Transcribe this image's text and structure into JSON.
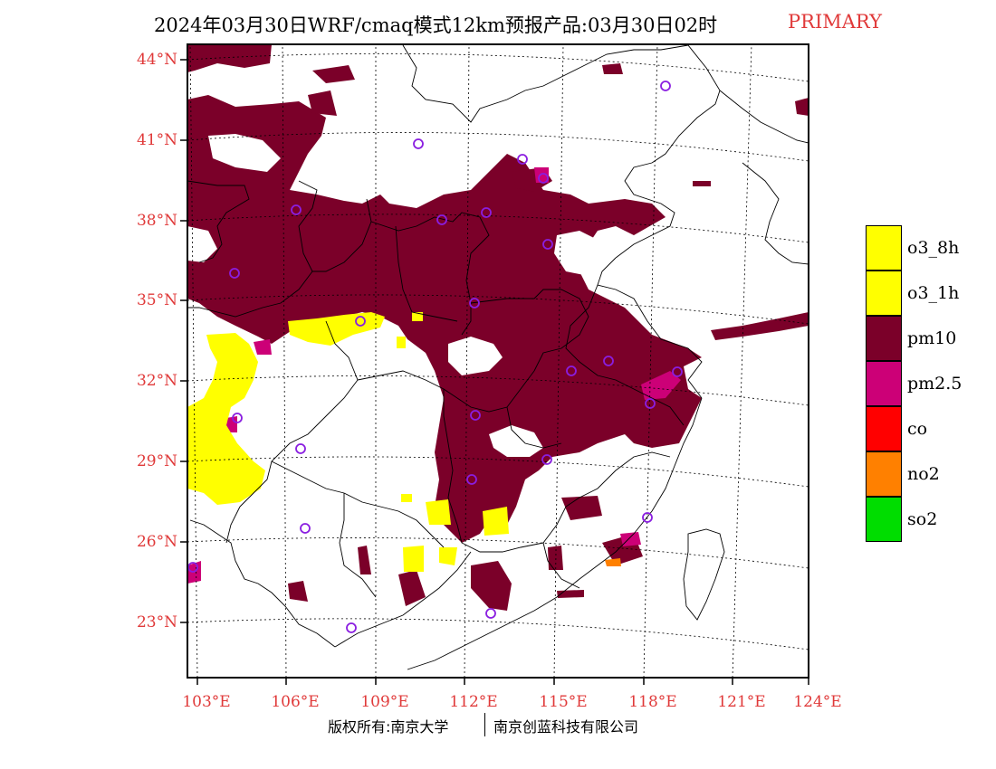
{
  "title": {
    "main": "2024年03月30日WRF/cmaq模式12km预报产品:03月30日02时",
    "tag": "PRIMARY"
  },
  "map": {
    "lat_labels": [
      "44°N",
      "41°N",
      "38°N",
      "35°N",
      "32°N",
      "29°N",
      "26°N",
      "23°N"
    ],
    "lon_labels": [
      "103°E",
      "106°E",
      "109°E",
      "112°E",
      "115°E",
      "118°E",
      "121°E",
      "124°E"
    ],
    "colors": {
      "pm10": "#7b0029",
      "pm25": "#cc0077",
      "o3": "#ffff00",
      "no2": "#ff8000",
      "frame": "#000000",
      "label": "#e03a3a",
      "station": "#8a1ee0"
    }
  },
  "legend": [
    {
      "label": "o3_8h",
      "color": "#ffff00"
    },
    {
      "label": "o3_1h",
      "color": "#ffff00"
    },
    {
      "label": "pm10",
      "color": "#7b0029"
    },
    {
      "label": "pm2.5",
      "color": "#cc0077"
    },
    {
      "label": "co",
      "color": "#ff0000"
    },
    {
      "label": "no2",
      "color": "#ff8000"
    },
    {
      "label": "so2",
      "color": "#00dd00"
    }
  ],
  "footer": {
    "left": "版权所有:南京大学",
    "right": "南京创蓝科技有限公司"
  }
}
